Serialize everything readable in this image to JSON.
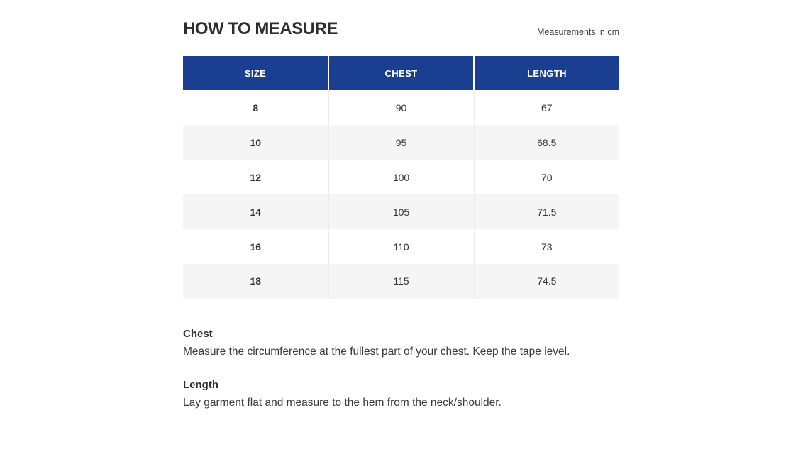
{
  "header": {
    "title": "HOW TO MEASURE",
    "units_note": "Measurements in cm"
  },
  "table": {
    "header_bg": "#1a3f91",
    "alt_row_bg": "#f5f5f5",
    "columns": [
      "SIZE",
      "CHEST",
      "LENGTH"
    ],
    "rows": [
      [
        "8",
        "90",
        "67"
      ],
      [
        "10",
        "95",
        "68.5"
      ],
      [
        "12",
        "100",
        "70"
      ],
      [
        "14",
        "105",
        "71.5"
      ],
      [
        "16",
        "110",
        "73"
      ],
      [
        "18",
        "115",
        "74.5"
      ]
    ]
  },
  "notes": [
    {
      "heading": "Chest",
      "text": "Measure the circumference at the fullest part of your chest. Keep the tape level."
    },
    {
      "heading": "Length",
      "text": "Lay garment flat and measure to the hem from the neck/shoulder."
    }
  ]
}
